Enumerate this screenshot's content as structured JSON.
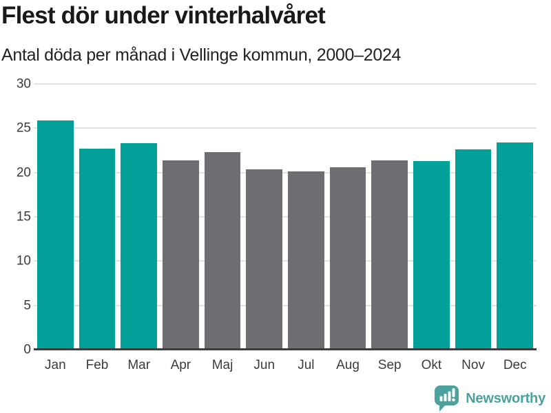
{
  "header": {
    "title": "Flest dör under vinterhalvåret",
    "subtitle": "Antal döda per månad i Vellinge kommun, 2000–2024"
  },
  "chart_data": {
    "type": "bar",
    "title": "Flest dör under vinterhalvåret",
    "subtitle": "Antal döda per månad i Vellinge kommun, 2000–2024",
    "categories": [
      "Jan",
      "Feb",
      "Mar",
      "Apr",
      "Maj",
      "Jun",
      "Jul",
      "Aug",
      "Sep",
      "Okt",
      "Nov",
      "Dec"
    ],
    "values": [
      25.9,
      22.7,
      23.3,
      21.4,
      22.3,
      20.4,
      20.1,
      20.6,
      21.4,
      21.3,
      22.6,
      23.4
    ],
    "bar_colors": [
      "#01A099",
      "#01A099",
      "#01A099",
      "#6E6E72",
      "#6E6E72",
      "#6E6E72",
      "#6E6E72",
      "#6E6E72",
      "#6E6E72",
      "#01A099",
      "#01A099",
      "#01A099"
    ],
    "highlight_color": "#01A099",
    "muted_color": "#6E6E72",
    "ylim": [
      0,
      30
    ],
    "yticks": [
      0,
      5,
      10,
      15,
      20,
      25,
      30
    ],
    "xlabel": "",
    "ylabel": "",
    "grid": "horizontal-only",
    "legend": "none"
  },
  "footer": {
    "brand": "Newsworthy",
    "brand_color": "#4BA29C",
    "logo_icon": "newsworthy-speech-bubble-bar-chart-icon"
  }
}
